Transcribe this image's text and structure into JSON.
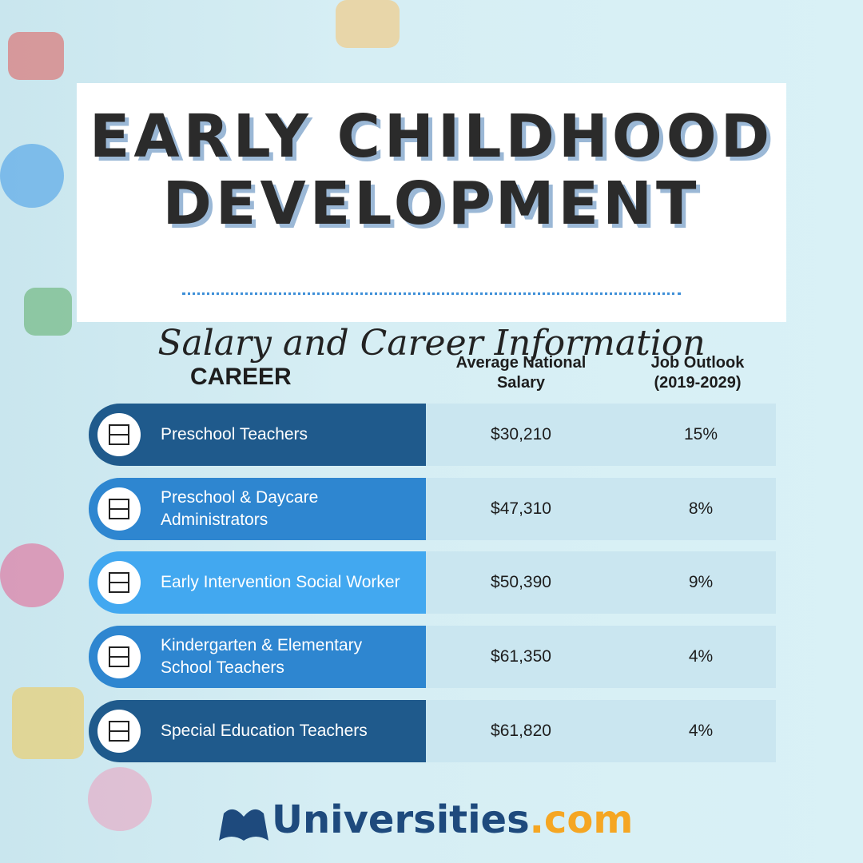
{
  "header": {
    "title_line1": "EARLY CHILDHOOD",
    "title_line2": "DEVELOPMENT",
    "subtitle": "Salary and Career Information"
  },
  "table": {
    "headers": [
      "CAREER",
      "Average National Salary",
      "Job Outlook (2019-2029)"
    ],
    "rows": [
      [
        "Preschool Teachers",
        "$30,210",
        "15%"
      ],
      [
        "Preschool & Daycare Administrators",
        "$47,310",
        "8%"
      ],
      [
        "Early Intervention Social Worker",
        "$50,390",
        "9%"
      ],
      [
        "Kindergarten & Elementary School Teachers",
        "$61,350",
        "4%"
      ],
      [
        "Special Education Teachers",
        "$61,820",
        "4%"
      ]
    ]
  },
  "footer": {
    "brand": "Universities",
    "suffix": ".com"
  }
}
